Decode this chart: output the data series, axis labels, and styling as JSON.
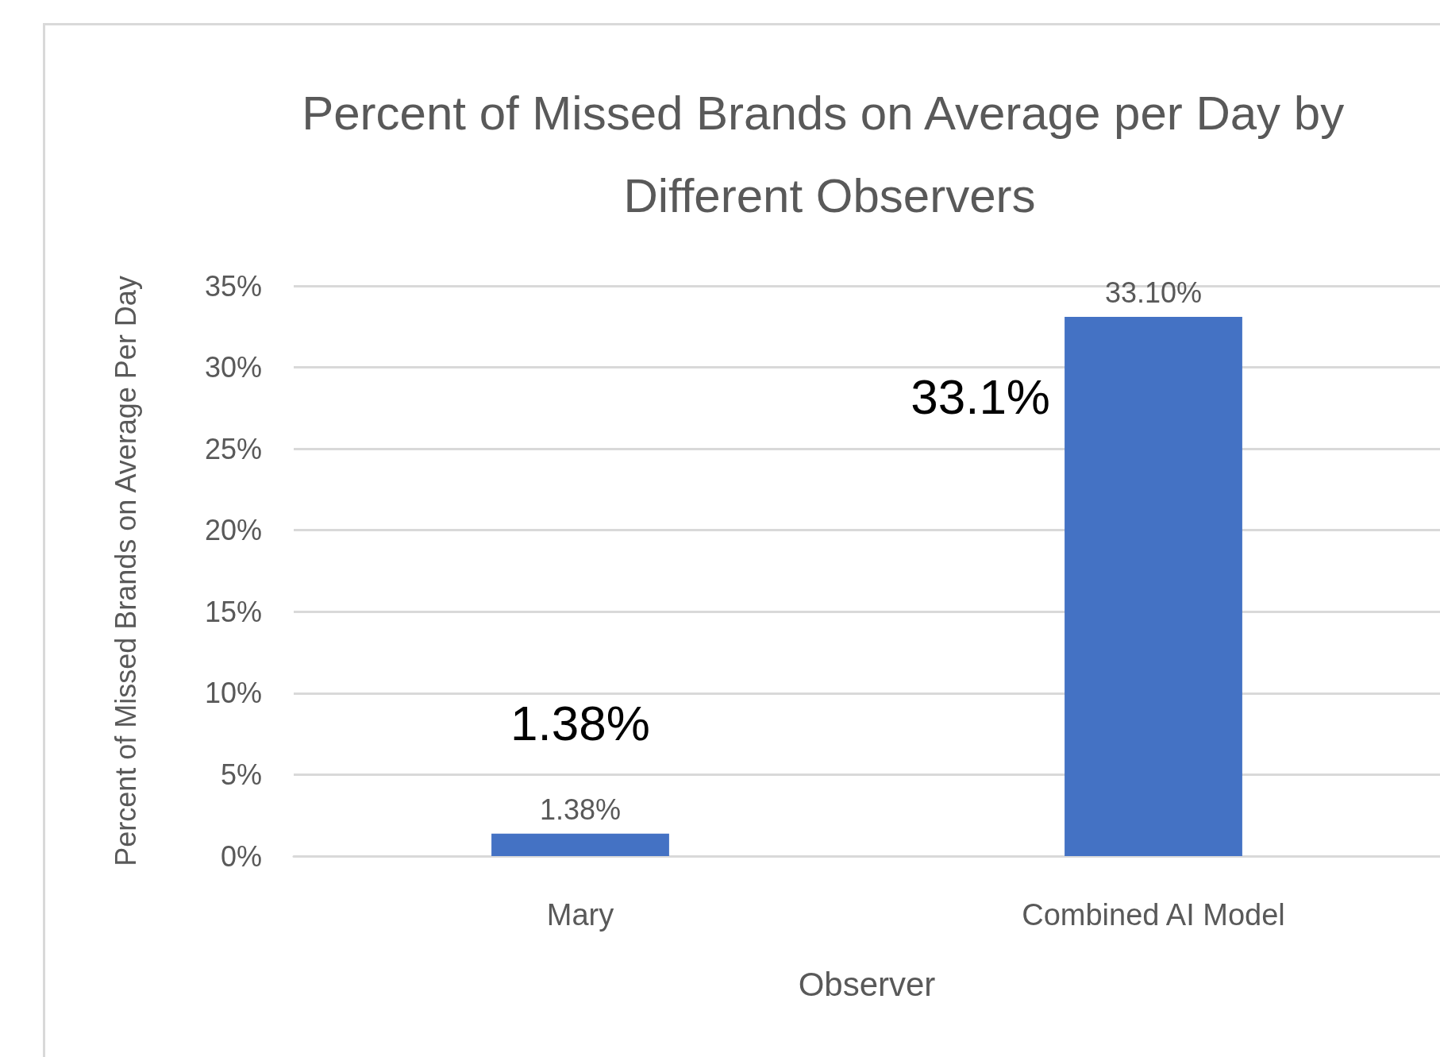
{
  "chart_data": {
    "type": "bar",
    "title": "Percent of Missed Brands on Average per Day by Different Observers",
    "xlabel": "Observer",
    "ylabel": "Percent of Missed Brands on Average Per Day",
    "categories": [
      "Mary",
      "Combined AI Model"
    ],
    "values": [
      1.38,
      33.1
    ],
    "color": "#4472c4",
    "value_labels": [
      "1.38%",
      "33.10%"
    ],
    "annotations": [
      {
        "text": "1.38%",
        "x": "Mary",
        "y": 1.38
      },
      {
        "text": "33.1%",
        "x": "Combined AI Model",
        "y": 33.1
      }
    ],
    "ylim": [
      0,
      35
    ],
    "yticks": [
      {
        "value": 0,
        "label": "0%"
      },
      {
        "value": 5,
        "label": "5%"
      },
      {
        "value": 10,
        "label": "10%"
      },
      {
        "value": 15,
        "label": "15%"
      },
      {
        "value": 20,
        "label": "20%"
      },
      {
        "value": 25,
        "label": "25%"
      },
      {
        "value": 30,
        "label": "30%"
      },
      {
        "value": 35,
        "label": "35%"
      }
    ],
    "grid": "y"
  }
}
